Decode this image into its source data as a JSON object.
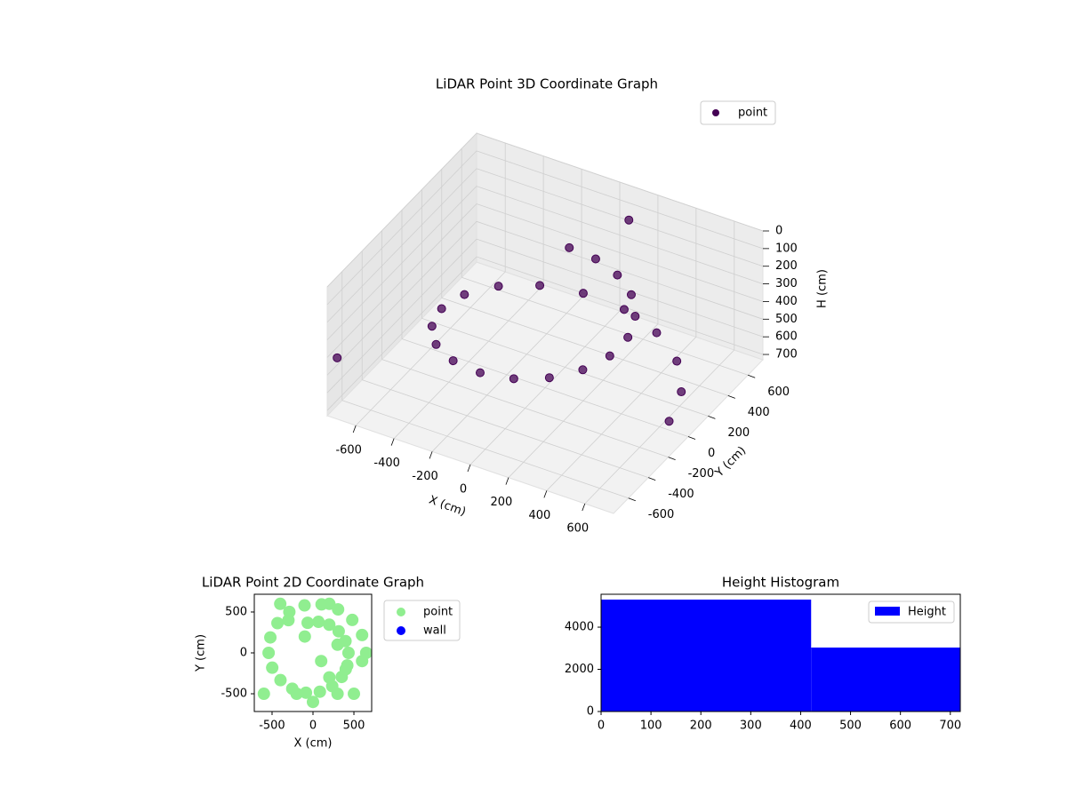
{
  "chart_data": [
    {
      "type": "scatter3d",
      "title": "LiDAR Point 3D Coordinate Graph",
      "xlabel": "X (cm)",
      "ylabel": "Y (cm)",
      "zlabel": "H (cm)",
      "xlim": [
        -750,
        750
      ],
      "ylim": [
        -750,
        750
      ],
      "zlim": [
        730,
        0
      ],
      "xticks": [
        -600,
        -400,
        -200,
        0,
        200,
        400,
        600
      ],
      "yticks": [
        -600,
        -400,
        -200,
        0,
        200,
        400,
        600
      ],
      "zticks": [
        0,
        100,
        200,
        300,
        400,
        500,
        600,
        700
      ],
      "grid": true,
      "legend": "upper right",
      "series": [
        {
          "name": "point",
          "color": "#440154",
          "x": [
            650,
            600,
            480,
            307,
            105,
            -103,
            -289,
            -434,
            -521,
            -542,
            -498,
            -397,
            -253,
            -86,
            84,
            235,
            351,
            419,
            434,
            397,
            314,
            199,
            67,
            -65,
            -750,
            100
          ],
          "y": [
            0,
            218,
            403,
            532,
            593,
            581,
            501,
            364,
            189,
            0,
            -181,
            -333,
            -438,
            -487,
            -475,
            -407,
            -294,
            -153,
            0,
            144,
            264,
            345,
            380,
            368,
            -650,
            650
          ],
          "z": [
            680,
            658,
            636,
            614,
            592,
            570,
            548,
            526,
            504,
            482,
            460,
            438,
            416,
            394,
            372,
            350,
            328,
            306,
            284,
            262,
            240,
            218,
            196,
            174,
            460,
            120
          ]
        }
      ]
    },
    {
      "type": "scatter",
      "title": "LiDAR Point 2D Coordinate Graph",
      "xlabel": "X (cm)",
      "ylabel": "Y (cm)",
      "xlim": [
        -717,
        717
      ],
      "ylim": [
        -717,
        717
      ],
      "xticks": [
        -500,
        0,
        500
      ],
      "yticks": [
        -500,
        0,
        500
      ],
      "legend": "outside right",
      "series": [
        {
          "name": "point",
          "color": "#90ee90",
          "x": [
            650,
            600,
            480,
            307,
            105,
            -103,
            -289,
            -434,
            -521,
            -542,
            -498,
            -397,
            -253,
            -86,
            84,
            235,
            351,
            419,
            434,
            397,
            314,
            199,
            67,
            -65,
            200,
            300,
            400,
            -200,
            100,
            500,
            -600,
            0,
            300,
            -300,
            -400,
            200,
            600,
            -100
          ],
          "y": [
            0,
            218,
            403,
            532,
            593,
            581,
            501,
            364,
            189,
            0,
            -181,
            -333,
            -438,
            -487,
            -475,
            -407,
            -294,
            -153,
            0,
            144,
            264,
            345,
            380,
            368,
            -300,
            -500,
            -200,
            -500,
            -100,
            -500,
            -500,
            -600,
            100,
            400,
            600,
            600,
            -100,
            200
          ]
        },
        {
          "name": "wall",
          "color": "#0000ff",
          "x": [],
          "y": []
        }
      ]
    },
    {
      "type": "histogram",
      "title": "Height Histogram",
      "bins": [
        0,
        421,
        721
      ],
      "xlim": [
        0,
        720
      ],
      "ylim": [
        0,
        5560
      ],
      "xticks": [
        0,
        100,
        200,
        300,
        400,
        500,
        600,
        700
      ],
      "yticks": [
        0,
        2000,
        4000
      ],
      "legend": "upper right",
      "series": [
        {
          "name": "Height",
          "color": "#0000ff",
          "values": [
            5307,
            3033
          ]
        }
      ]
    }
  ]
}
